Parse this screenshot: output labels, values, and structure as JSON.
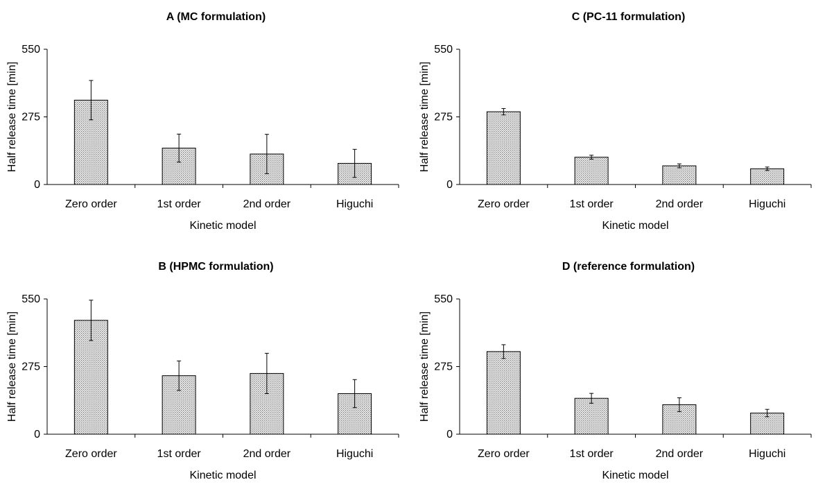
{
  "chart_data": [
    {
      "type": "bar",
      "title": "A (MC formulation)",
      "xlabel": "Kinetic model",
      "ylabel": "Half release time [min]",
      "ylim": [
        0,
        550
      ],
      "yticks": [
        0,
        275,
        550
      ],
      "categories": [
        "Zero order",
        "1st order",
        "2nd order",
        "Higuchi"
      ],
      "values": [
        343,
        148,
        124,
        86
      ],
      "errors": [
        80,
        57,
        80,
        57
      ]
    },
    {
      "type": "bar",
      "title": "C (PC-11 formulation)",
      "xlabel": "Kinetic model",
      "ylabel": "Half release time [min]",
      "ylim": [
        0,
        550
      ],
      "yticks": [
        0,
        275,
        550
      ],
      "categories": [
        "Zero order",
        "1st order",
        "2nd order",
        "Higuchi"
      ],
      "values": [
        296,
        111,
        76,
        64
      ],
      "errors": [
        13,
        8,
        8,
        7
      ]
    },
    {
      "type": "bar",
      "title": "B (HPMC formulation)",
      "xlabel": "Kinetic model",
      "ylabel": "Half release time [min]",
      "ylim": [
        0,
        550
      ],
      "yticks": [
        0,
        275,
        550
      ],
      "categories": [
        "Zero order",
        "1st order",
        "2nd order",
        "Higuchi"
      ],
      "values": [
        463,
        238,
        247,
        165
      ],
      "errors": [
        82,
        60,
        82,
        57
      ]
    },
    {
      "type": "bar",
      "title": "D (reference formulation)",
      "xlabel": "Kinetic model",
      "ylabel": "Half release time [min]",
      "ylim": [
        0,
        550
      ],
      "yticks": [
        0,
        275,
        550
      ],
      "categories": [
        "Zero order",
        "1st order",
        "2nd order",
        "Higuchi"
      ],
      "values": [
        336,
        146,
        120,
        86
      ],
      "errors": [
        28,
        20,
        28,
        15
      ]
    }
  ]
}
